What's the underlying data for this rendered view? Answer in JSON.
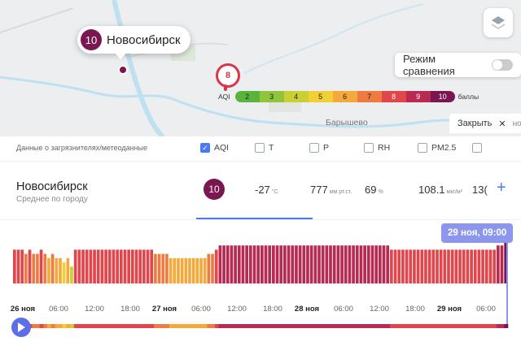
{
  "map": {
    "city_marker": {
      "aqi": "10",
      "name": "Новосибирск"
    },
    "pin_value": "8",
    "compare_label": "Режим сравнения",
    "legend": {
      "label": "AQI",
      "values": [
        "2",
        "3",
        "4",
        "5",
        "6",
        "7",
        "8",
        "9",
        "10"
      ],
      "colors": [
        "#5ab33a",
        "#8fc43b",
        "#c9cf34",
        "#f2cf35",
        "#f4a93a",
        "#ee7b3f",
        "#e0464b",
        "#b82a52",
        "#7a1650"
      ],
      "unit": "баллы"
    },
    "town_label": "Барышево",
    "close_label": "Закрыть",
    "map_edge_text": "но"
  },
  "filters": {
    "label": "Данные о загрязнителях/метеоданные",
    "items": [
      {
        "label": "AQI",
        "checked": true
      },
      {
        "label": "T",
        "checked": false
      },
      {
        "label": "P",
        "checked": false
      },
      {
        "label": "RH",
        "checked": false
      },
      {
        "label": "PM2.5",
        "checked": false
      },
      {
        "label": "",
        "checked": false
      }
    ]
  },
  "city_row": {
    "name": "Новосибирск",
    "subtitle": "Среднее по городу",
    "aqi": "10",
    "temp": "-27",
    "temp_unit": "°C",
    "pressure": "777",
    "pressure_unit": "мм рт.ст.",
    "humidity": "69",
    "humidity_unit": "%",
    "pm": "108.1",
    "pm_unit": "мкг/м³",
    "next": "13("
  },
  "chart": {
    "tooltip": "29 ноя, 09:00",
    "ticks": [
      {
        "label": "26 ноя",
        "day": true
      },
      {
        "label": "06:00",
        "day": false
      },
      {
        "label": "12:00",
        "day": false
      },
      {
        "label": "18:00",
        "day": false
      },
      {
        "label": "27 ноя",
        "day": true
      },
      {
        "label": "06:00",
        "day": false
      },
      {
        "label": "12:00",
        "day": false
      },
      {
        "label": "18:00",
        "day": false
      },
      {
        "label": "28 ноя",
        "day": true
      },
      {
        "label": "06:00",
        "day": false
      },
      {
        "label": "12:00",
        "day": false
      },
      {
        "label": "18:00",
        "day": false
      },
      {
        "label": "29 ноя",
        "day": true
      },
      {
        "label": "06:00",
        "day": false
      }
    ]
  },
  "chart_data": {
    "type": "bar",
    "title": "",
    "ylim": [
      0,
      10
    ],
    "values": [
      8,
      8,
      8,
      7,
      8,
      7,
      7,
      8,
      7,
      6,
      7,
      6,
      6,
      5,
      6,
      4,
      8,
      8,
      8,
      8,
      8,
      8,
      8,
      8,
      8,
      8,
      8,
      8,
      8,
      8,
      8,
      8,
      8,
      8,
      8,
      8,
      8,
      7,
      7,
      7,
      7,
      6,
      6,
      6,
      6,
      6,
      6,
      6,
      6,
      6,
      6,
      7,
      7,
      8,
      9,
      9,
      9,
      9,
      9,
      9,
      9,
      9,
      9,
      9,
      9,
      9,
      9,
      9,
      9,
      9,
      9,
      9,
      9,
      9,
      9,
      9,
      9,
      9,
      9,
      9,
      9,
      9,
      9,
      9,
      9,
      9,
      9,
      9,
      9,
      9,
      9,
      9,
      9,
      9,
      9,
      9,
      9,
      9,
      9,
      8,
      8,
      8,
      8,
      8,
      8,
      8,
      8,
      8,
      8,
      8,
      8,
      8,
      8,
      8,
      8,
      8,
      8,
      8,
      8,
      8,
      8,
      8,
      8,
      8,
      8,
      8,
      8,
      9,
      9,
      10
    ],
    "colors": {
      "4": "#c9cf34",
      "5": "#f2cf35",
      "6": "#f4a93a",
      "7": "#ee7b3f",
      "8": "#e0464b",
      "9": "#b82a52",
      "10": "#7a1650"
    }
  }
}
